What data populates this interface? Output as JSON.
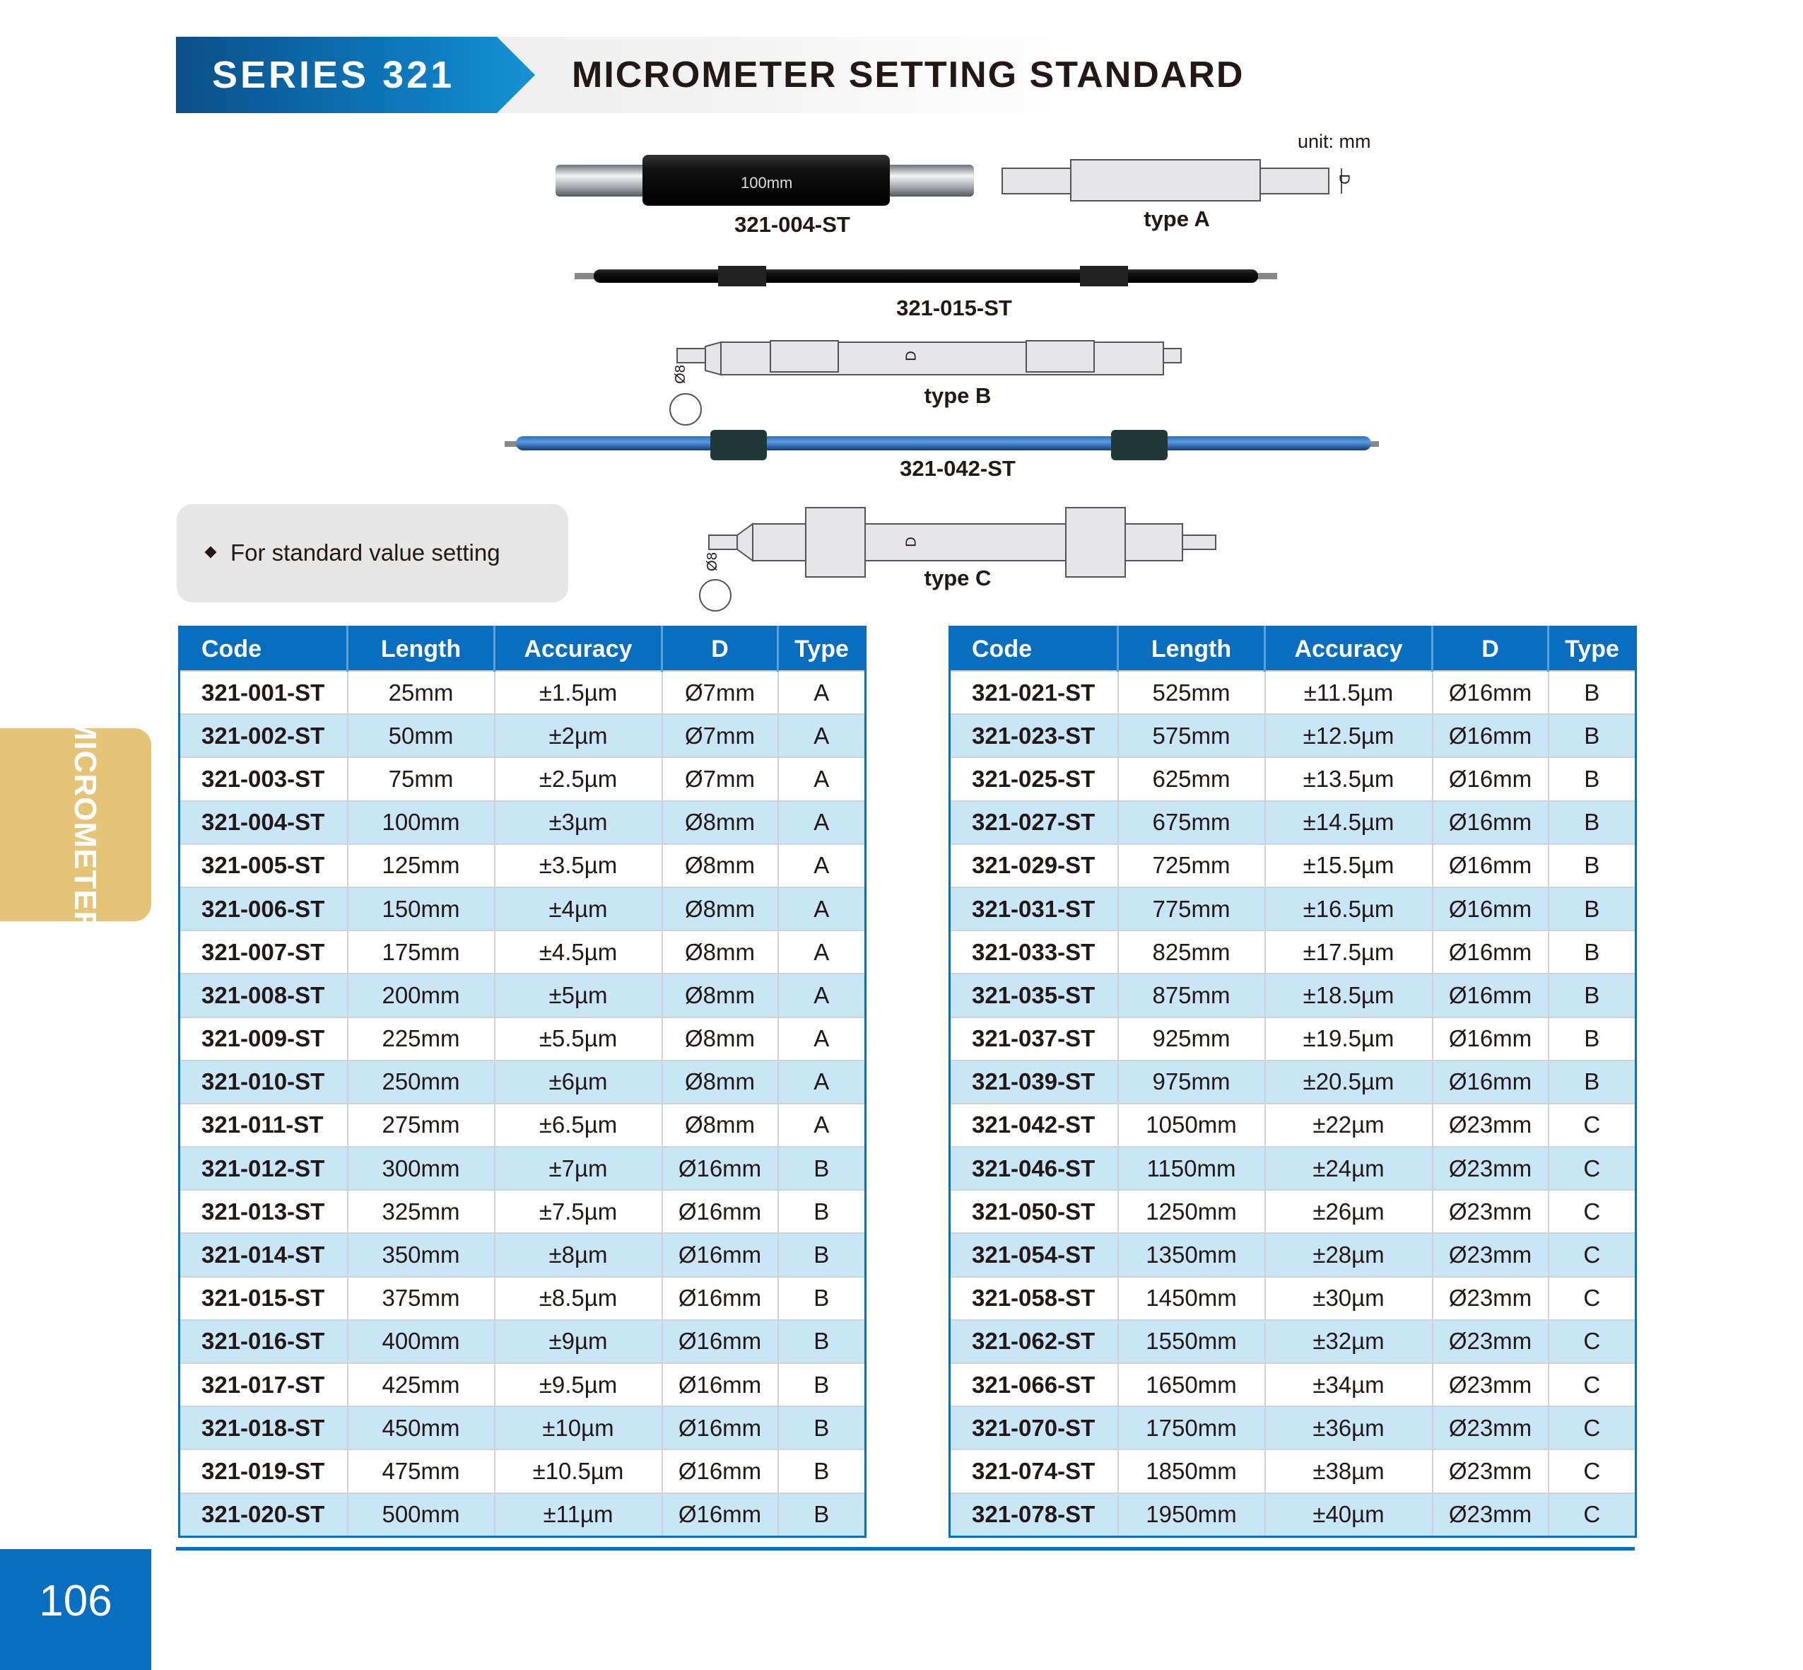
{
  "header": {
    "series": "SERIES 321",
    "title": "MICROMETER SETTING STANDARD"
  },
  "unit_label": "unit: mm",
  "figures": {
    "photo_004": {
      "label": "321-004-ST",
      "engraving": "100mm"
    },
    "type_a": {
      "label": "type A",
      "dim": "D"
    },
    "photo_015": {
      "label": "321-015-ST"
    },
    "type_b": {
      "label": "type B",
      "dim": "D",
      "end_dim": "Ø8"
    },
    "photo_042": {
      "label": "321-042-ST"
    },
    "type_c": {
      "label": "type C",
      "dim": "D",
      "end_dim": "Ø8"
    }
  },
  "note": "For standard value setting",
  "table_columns": [
    "Code",
    "Length",
    "Accuracy",
    "D",
    "Type"
  ],
  "table_left": [
    [
      "321-001-ST",
      "25mm",
      "±1.5µm",
      "Ø7mm",
      "A"
    ],
    [
      "321-002-ST",
      "50mm",
      "±2µm",
      "Ø7mm",
      "A"
    ],
    [
      "321-003-ST",
      "75mm",
      "±2.5µm",
      "Ø7mm",
      "A"
    ],
    [
      "321-004-ST",
      "100mm",
      "±3µm",
      "Ø8mm",
      "A"
    ],
    [
      "321-005-ST",
      "125mm",
      "±3.5µm",
      "Ø8mm",
      "A"
    ],
    [
      "321-006-ST",
      "150mm",
      "±4µm",
      "Ø8mm",
      "A"
    ],
    [
      "321-007-ST",
      "175mm",
      "±4.5µm",
      "Ø8mm",
      "A"
    ],
    [
      "321-008-ST",
      "200mm",
      "±5µm",
      "Ø8mm",
      "A"
    ],
    [
      "321-009-ST",
      "225mm",
      "±5.5µm",
      "Ø8mm",
      "A"
    ],
    [
      "321-010-ST",
      "250mm",
      "±6µm",
      "Ø8mm",
      "A"
    ],
    [
      "321-011-ST",
      "275mm",
      "±6.5µm",
      "Ø8mm",
      "A"
    ],
    [
      "321-012-ST",
      "300mm",
      "±7µm",
      "Ø16mm",
      "B"
    ],
    [
      "321-013-ST",
      "325mm",
      "±7.5µm",
      "Ø16mm",
      "B"
    ],
    [
      "321-014-ST",
      "350mm",
      "±8µm",
      "Ø16mm",
      "B"
    ],
    [
      "321-015-ST",
      "375mm",
      "±8.5µm",
      "Ø16mm",
      "B"
    ],
    [
      "321-016-ST",
      "400mm",
      "±9µm",
      "Ø16mm",
      "B"
    ],
    [
      "321-017-ST",
      "425mm",
      "±9.5µm",
      "Ø16mm",
      "B"
    ],
    [
      "321-018-ST",
      "450mm",
      "±10µm",
      "Ø16mm",
      "B"
    ],
    [
      "321-019-ST",
      "475mm",
      "±10.5µm",
      "Ø16mm",
      "B"
    ],
    [
      "321-020-ST",
      "500mm",
      "±11µm",
      "Ø16mm",
      "B"
    ]
  ],
  "table_right": [
    [
      "321-021-ST",
      "525mm",
      "±11.5µm",
      "Ø16mm",
      "B"
    ],
    [
      "321-023-ST",
      "575mm",
      "±12.5µm",
      "Ø16mm",
      "B"
    ],
    [
      "321-025-ST",
      "625mm",
      "±13.5µm",
      "Ø16mm",
      "B"
    ],
    [
      "321-027-ST",
      "675mm",
      "±14.5µm",
      "Ø16mm",
      "B"
    ],
    [
      "321-029-ST",
      "725mm",
      "±15.5µm",
      "Ø16mm",
      "B"
    ],
    [
      "321-031-ST",
      "775mm",
      "±16.5µm",
      "Ø16mm",
      "B"
    ],
    [
      "321-033-ST",
      "825mm",
      "±17.5µm",
      "Ø16mm",
      "B"
    ],
    [
      "321-035-ST",
      "875mm",
      "±18.5µm",
      "Ø16mm",
      "B"
    ],
    [
      "321-037-ST",
      "925mm",
      "±19.5µm",
      "Ø16mm",
      "B"
    ],
    [
      "321-039-ST",
      "975mm",
      "±20.5µm",
      "Ø16mm",
      "B"
    ],
    [
      "321-042-ST",
      "1050mm",
      "±22µm",
      "Ø23mm",
      "C"
    ],
    [
      "321-046-ST",
      "1150mm",
      "±24µm",
      "Ø23mm",
      "C"
    ],
    [
      "321-050-ST",
      "1250mm",
      "±26µm",
      "Ø23mm",
      "C"
    ],
    [
      "321-054-ST",
      "1350mm",
      "±28µm",
      "Ø23mm",
      "C"
    ],
    [
      "321-058-ST",
      "1450mm",
      "±30µm",
      "Ø23mm",
      "C"
    ],
    [
      "321-062-ST",
      "1550mm",
      "±32µm",
      "Ø23mm",
      "C"
    ],
    [
      "321-066-ST",
      "1650mm",
      "±34µm",
      "Ø23mm",
      "C"
    ],
    [
      "321-070-ST",
      "1750mm",
      "±36µm",
      "Ø23mm",
      "C"
    ],
    [
      "321-074-ST",
      "1850mm",
      "±38µm",
      "Ø23mm",
      "C"
    ],
    [
      "321-078-ST",
      "1950mm",
      "±40µm",
      "Ø23mm",
      "C"
    ]
  ],
  "side_tab": "MICROMETER",
  "page_number": "106",
  "colors": {
    "brand_blue": "#0a6ec0",
    "row_alt": "#c9e6f7",
    "side_tab": "#e5c477",
    "note_bg": "#e6e6e7"
  }
}
